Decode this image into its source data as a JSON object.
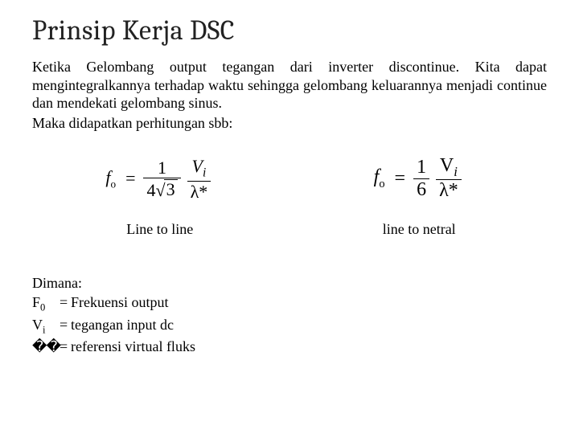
{
  "title": "Prinsip Kerja DSC",
  "paragraph1": "Ketika Gelombang output tegangan dari inverter discontinue. Kita dapat mengintegralkannya terhadap waktu sehingga gelombang keluarannya menjadi continue dan mendekati gelombang sinus.",
  "paragraph2": "Maka didapatkan perhitungan sbb:",
  "formula_left": {
    "lhs_base": "f",
    "lhs_sub": "o",
    "denom_coeff": "4",
    "denom_sqrt": "3",
    "numer2_top": "V",
    "numer2_top_sub": "i",
    "numer2_bot": "λ*"
  },
  "formula_right": {
    "lhs_base": "f",
    "lhs_sub": "o",
    "numer1": "1",
    "denom1": "6",
    "numer2_top": "V",
    "numer2_top_sub": "i",
    "numer2_bot": "λ*"
  },
  "caption_left": "Line to line",
  "caption_right": "line to netral",
  "where_heading": "Dimana:",
  "where": [
    {
      "sym": "F",
      "sub": "0",
      "def": "Frekuensi output"
    },
    {
      "sym": "V",
      "sub": "i",
      "def": "tegangan input dc"
    },
    {
      "sym": "��",
      "sub": "",
      "def": "referensi virtual fluks"
    }
  ],
  "colors": {
    "text": "#000000",
    "background": "#ffffff"
  },
  "font": {
    "title_family": "Cambria",
    "body_family": "Times New Roman",
    "title_size_pt": 26,
    "body_size_pt": 14
  }
}
